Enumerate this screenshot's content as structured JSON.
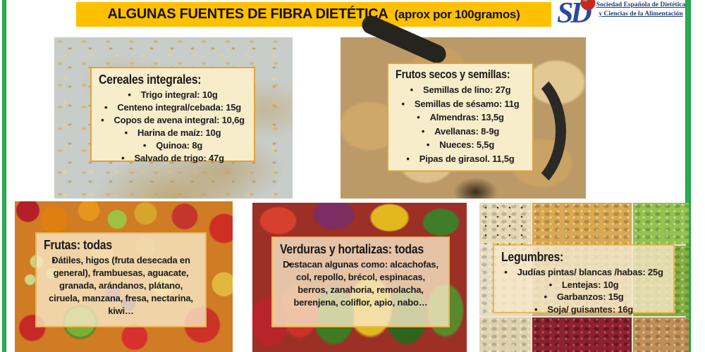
{
  "theme": {
    "header-bg": "#FFC000",
    "frame-green": "#2EB353",
    "box-fill": "#F8EDCB",
    "box-border": "#E2A33B",
    "text": "#1E1E1E",
    "logo-blue": "#22407B",
    "logo-red": "#BF2B20"
  },
  "header": {
    "title": "ALGUNAS FUENTES DE FIBRA DIETÉTICA",
    "subtitle": "(aprox por 100gramos)"
  },
  "logo": {
    "org_line1": "Sociedad Española de Dietética",
    "org_line2": "y Ciencias de la Alimentación",
    "mark": "sed-monogram-with-apple"
  },
  "panels": [
    {
      "id": "cereales",
      "title": "Cereales integrales:",
      "photo": "oat-flakes-photo",
      "items": [
        "Trigo integral: 10g",
        "Centeno integral/cebada: 15g",
        "Copos de avena integral: 10,6g",
        "Harina de maíz: 10g",
        "Quinoa: 8g",
        "Salvado de trigo: 47g"
      ]
    },
    {
      "id": "frutos-secos",
      "title": "Frutos secos y semillas:",
      "photo": "dried-fruits-nuts-scoop-photo",
      "items": [
        "Semillas de lino: 27g",
        "Semillas de sésamo: 11g",
        "Almendras: 13,5g",
        "Avellanas: 8-9g",
        "Nueces: 5,5g",
        "Pipas de girasol. 11,5g"
      ]
    },
    {
      "id": "frutas",
      "title": "Frutas: todas",
      "photo": "assorted-fruits-photo",
      "items": [
        "Dátiles, higos (fruta desecada en general), frambuesas, aguacate, granada, arándanos, plátano, ciruela, manzana, fresa, nectarina, kiwi…"
      ]
    },
    {
      "id": "verduras",
      "title": "Verduras y hortalizas: todas",
      "photo": "peppers-vegetables-photo",
      "items": [
        "Destacan algunas como: alcachofas, col, repollo, brécol, espinacas, berros, zanahoria, remolacha, berenjena, coliflor, apio, nabo…"
      ]
    },
    {
      "id": "legumbres",
      "title": "Legumbres:",
      "photo": "legumes-collage-photo",
      "items": [
        "Judías pintas/ blancas /habas: 25g",
        "Lentejas: 10g",
        "Garbanzos: 15g",
        "Soja/ guisantes: 16g"
      ]
    }
  ]
}
